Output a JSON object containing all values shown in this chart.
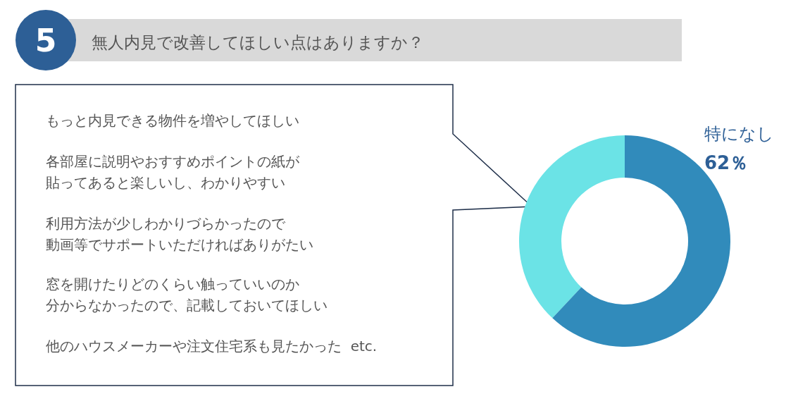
{
  "chart_data": {
    "type": "donut",
    "title": "無人内見で改善してほしい点はありますか？",
    "categories": [
      "特になし",
      null
    ],
    "values": [
      62,
      38
    ],
    "colors": [
      "#318bbb",
      "#6be3e6"
    ],
    "value_labels": [
      "62％",
      null
    ],
    "annotations": [
      "5",
      "もっと内見できる物件を増やしてほしい",
      "各部屋に説明やおすすめポイントの紙が",
      "貼ってあると楽しいし、わかりやすい",
      "利用方法が少しわかりづらかったので",
      "動画等でサポートいただければありがたい",
      "窓を開けたりどのくらい触っていいのか",
      "分からなかったので、記載しておいてほしい",
      "他のハウスメーカーや注文住宅系も見たかった  etc."
    ]
  }
}
